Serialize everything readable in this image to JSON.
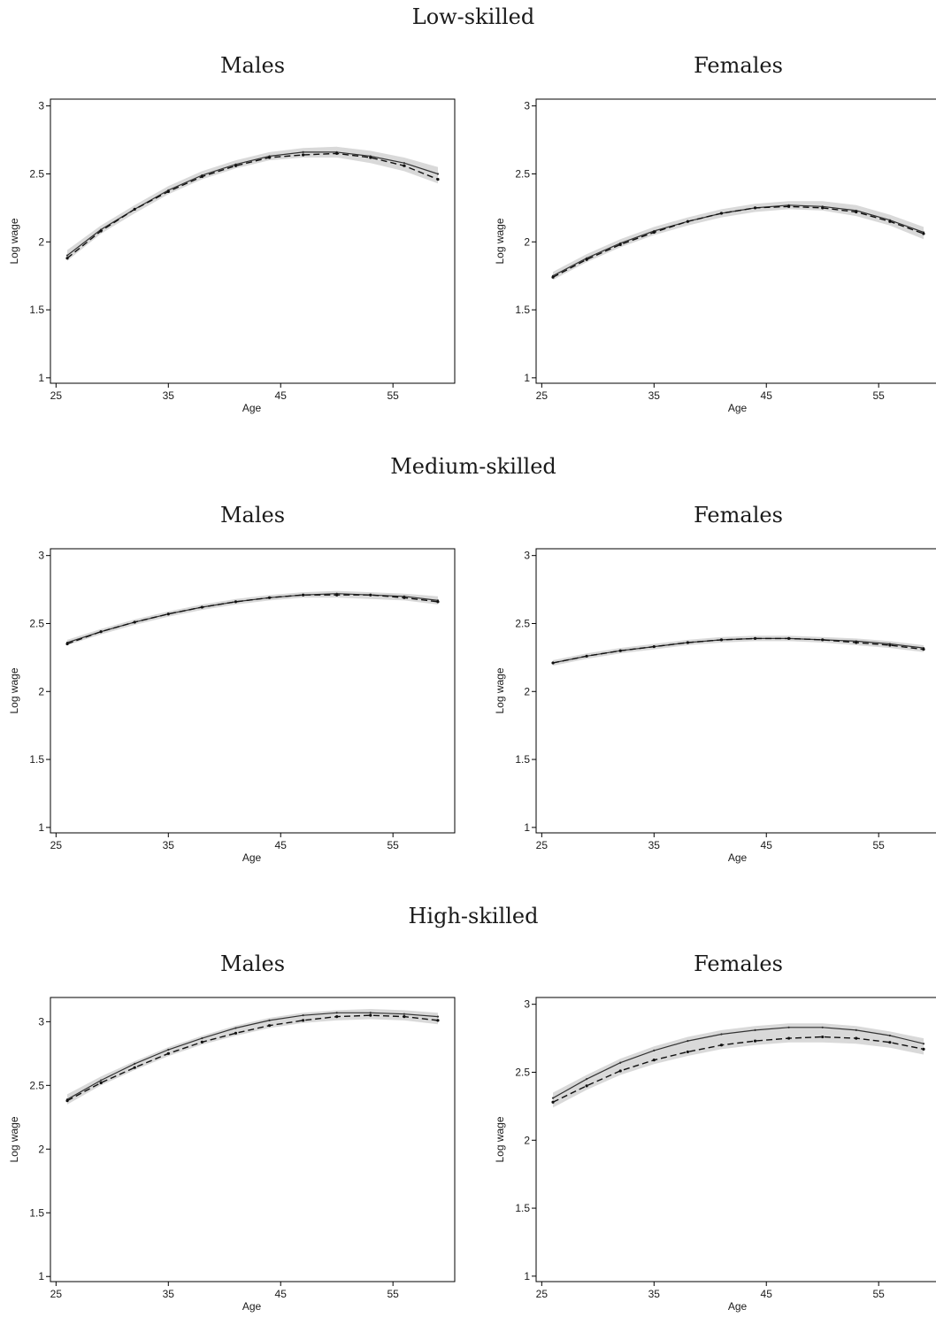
{
  "chart_data": [
    {
      "type": "line",
      "group": "Low-skilled",
      "title": "Males",
      "xlabel": "Age",
      "ylabel": "Log wage",
      "xticks": [
        "25",
        "35",
        "45",
        "55"
      ],
      "yticks": [
        "1",
        "1.5",
        "2",
        "2.5",
        "3"
      ],
      "xlim": [
        24.5,
        60.5
      ],
      "ylim": [
        0.96,
        3.05
      ],
      "series": [
        {
          "style": "solid",
          "x": [
            26,
            29,
            32,
            35,
            38,
            41,
            44,
            47,
            50,
            53,
            56,
            59
          ],
          "y": [
            1.9,
            2.09,
            2.24,
            2.38,
            2.49,
            2.57,
            2.63,
            2.66,
            2.66,
            2.63,
            2.58,
            2.5
          ]
        },
        {
          "style": "dashed",
          "x": [
            26,
            29,
            32,
            35,
            38,
            41,
            44,
            47,
            50,
            53,
            56,
            59
          ],
          "y": [
            1.88,
            2.08,
            2.24,
            2.37,
            2.48,
            2.56,
            2.62,
            2.64,
            2.65,
            2.62,
            2.56,
            2.46
          ]
        }
      ],
      "band": {
        "x": [
          26,
          29,
          32,
          35,
          38,
          41,
          44,
          47,
          50,
          53,
          56,
          59
        ],
        "lo": [
          1.86,
          2.06,
          2.21,
          2.35,
          2.46,
          2.54,
          2.6,
          2.62,
          2.62,
          2.58,
          2.52,
          2.43
        ],
        "hi": [
          1.94,
          2.12,
          2.27,
          2.41,
          2.52,
          2.6,
          2.66,
          2.69,
          2.7,
          2.67,
          2.62,
          2.55
        ]
      }
    },
    {
      "type": "line",
      "group": "Low-skilled",
      "title": "Females",
      "xlabel": "Age",
      "ylabel": "Log wage",
      "xticks": [
        "25",
        "35",
        "45",
        "55"
      ],
      "yticks": [
        "1",
        "1.5",
        "2",
        "2.5",
        "3"
      ],
      "xlim": [
        24.5,
        60.5
      ],
      "ylim": [
        0.96,
        3.05
      ],
      "series": [
        {
          "style": "solid",
          "x": [
            26,
            29,
            32,
            35,
            38,
            41,
            44,
            47,
            50,
            53,
            56,
            59
          ],
          "y": [
            1.75,
            1.88,
            1.99,
            2.08,
            2.15,
            2.21,
            2.25,
            2.27,
            2.26,
            2.23,
            2.16,
            2.07
          ]
        },
        {
          "style": "dashed",
          "x": [
            26,
            29,
            32,
            35,
            38,
            41,
            44,
            47,
            50,
            53,
            56,
            59
          ],
          "y": [
            1.74,
            1.87,
            1.98,
            2.07,
            2.15,
            2.21,
            2.25,
            2.26,
            2.25,
            2.22,
            2.15,
            2.06
          ]
        }
      ],
      "band": {
        "x": [
          26,
          29,
          32,
          35,
          38,
          41,
          44,
          47,
          50,
          53,
          56,
          59
        ],
        "lo": [
          1.72,
          1.85,
          1.96,
          2.05,
          2.12,
          2.18,
          2.22,
          2.24,
          2.23,
          2.19,
          2.12,
          2.02
        ],
        "hi": [
          1.78,
          1.91,
          2.02,
          2.11,
          2.18,
          2.24,
          2.28,
          2.3,
          2.3,
          2.27,
          2.2,
          2.11
        ]
      }
    },
    {
      "type": "line",
      "group": "Medium-skilled",
      "title": "Males",
      "xlabel": "Age",
      "ylabel": "Log wage",
      "xticks": [
        "25",
        "35",
        "45",
        "55"
      ],
      "yticks": [
        "1",
        "1.5",
        "2",
        "2.5",
        "3"
      ],
      "xlim": [
        24.5,
        60.5
      ],
      "ylim": [
        0.96,
        3.05
      ],
      "series": [
        {
          "style": "solid",
          "x": [
            26,
            29,
            32,
            35,
            38,
            41,
            44,
            47,
            50,
            53,
            56,
            59
          ],
          "y": [
            2.36,
            2.44,
            2.51,
            2.57,
            2.62,
            2.66,
            2.69,
            2.71,
            2.72,
            2.71,
            2.7,
            2.67
          ]
        },
        {
          "style": "dashed",
          "x": [
            26,
            29,
            32,
            35,
            38,
            41,
            44,
            47,
            50,
            53,
            56,
            59
          ],
          "y": [
            2.35,
            2.44,
            2.51,
            2.57,
            2.62,
            2.66,
            2.69,
            2.71,
            2.71,
            2.71,
            2.69,
            2.66
          ]
        }
      ],
      "band": {
        "x": [
          26,
          29,
          32,
          35,
          38,
          41,
          44,
          47,
          50,
          53,
          56,
          59
        ],
        "lo": [
          2.34,
          2.42,
          2.49,
          2.55,
          2.6,
          2.64,
          2.67,
          2.69,
          2.69,
          2.68,
          2.67,
          2.64
        ],
        "hi": [
          2.38,
          2.46,
          2.53,
          2.59,
          2.64,
          2.68,
          2.71,
          2.73,
          2.74,
          2.73,
          2.72,
          2.7
        ]
      }
    },
    {
      "type": "line",
      "group": "Medium-skilled",
      "title": "Females",
      "xlabel": "Age",
      "ylabel": "Log wage",
      "xticks": [
        "25",
        "35",
        "45",
        "55"
      ],
      "yticks": [
        "1",
        "1.5",
        "2",
        "2.5",
        "3"
      ],
      "xlim": [
        24.5,
        60.5
      ],
      "ylim": [
        0.96,
        3.05
      ],
      "series": [
        {
          "style": "solid",
          "x": [
            26,
            29,
            32,
            35,
            38,
            41,
            44,
            47,
            50,
            53,
            56,
            59
          ],
          "y": [
            2.21,
            2.26,
            2.3,
            2.33,
            2.36,
            2.38,
            2.39,
            2.39,
            2.38,
            2.37,
            2.35,
            2.32
          ]
        },
        {
          "style": "dashed",
          "x": [
            26,
            29,
            32,
            35,
            38,
            41,
            44,
            47,
            50,
            53,
            56,
            59
          ],
          "y": [
            2.21,
            2.26,
            2.3,
            2.33,
            2.36,
            2.38,
            2.39,
            2.39,
            2.38,
            2.36,
            2.34,
            2.31
          ]
        }
      ],
      "band": {
        "x": [
          26,
          29,
          32,
          35,
          38,
          41,
          44,
          47,
          50,
          53,
          56,
          59
        ],
        "lo": [
          2.19,
          2.24,
          2.28,
          2.31,
          2.34,
          2.36,
          2.37,
          2.37,
          2.36,
          2.34,
          2.32,
          2.29
        ],
        "hi": [
          2.23,
          2.28,
          2.32,
          2.35,
          2.38,
          2.4,
          2.41,
          2.41,
          2.4,
          2.39,
          2.37,
          2.34
        ]
      }
    },
    {
      "type": "line",
      "group": "High-skilled",
      "title": "Males",
      "xlabel": "Age",
      "ylabel": "Log wage",
      "xticks": [
        "25",
        "35",
        "45",
        "55"
      ],
      "yticks": [
        "1",
        "1.5",
        "2",
        "2.5",
        "3"
      ],
      "xlim": [
        24.5,
        60.5
      ],
      "ylim": [
        0.96,
        3.19
      ],
      "series": [
        {
          "style": "solid",
          "x": [
            26,
            29,
            32,
            35,
            38,
            41,
            44,
            47,
            50,
            53,
            56,
            59
          ],
          "y": [
            2.39,
            2.54,
            2.67,
            2.78,
            2.87,
            2.95,
            3.01,
            3.05,
            3.07,
            3.07,
            3.06,
            3.04
          ]
        },
        {
          "style": "dashed",
          "x": [
            26,
            29,
            32,
            35,
            38,
            41,
            44,
            47,
            50,
            53,
            56,
            59
          ],
          "y": [
            2.38,
            2.52,
            2.64,
            2.75,
            2.84,
            2.91,
            2.97,
            3.01,
            3.04,
            3.05,
            3.04,
            3.01
          ]
        }
      ],
      "band": {
        "x": [
          26,
          29,
          32,
          35,
          38,
          41,
          44,
          47,
          50,
          53,
          56,
          59
        ],
        "lo": [
          2.35,
          2.5,
          2.62,
          2.73,
          2.82,
          2.89,
          2.95,
          2.99,
          3.01,
          3.02,
          3.01,
          2.98
        ],
        "hi": [
          2.43,
          2.57,
          2.69,
          2.8,
          2.89,
          2.97,
          3.03,
          3.07,
          3.09,
          3.1,
          3.09,
          3.07
        ]
      }
    },
    {
      "type": "line",
      "group": "High-skilled",
      "title": "Females",
      "xlabel": "Age",
      "ylabel": "Log wage",
      "xticks": [
        "25",
        "35",
        "45",
        "55"
      ],
      "yticks": [
        "1",
        "1.5",
        "2",
        "2.5",
        "3"
      ],
      "xlim": [
        24.5,
        60.5
      ],
      "ylim": [
        0.96,
        3.05
      ],
      "series": [
        {
          "style": "solid",
          "x": [
            26,
            29,
            32,
            35,
            38,
            41,
            44,
            47,
            50,
            53,
            56,
            59
          ],
          "y": [
            2.31,
            2.45,
            2.57,
            2.66,
            2.73,
            2.78,
            2.81,
            2.83,
            2.83,
            2.81,
            2.77,
            2.71
          ]
        },
        {
          "style": "dashed",
          "x": [
            26,
            29,
            32,
            35,
            38,
            41,
            44,
            47,
            50,
            53,
            56,
            59
          ],
          "y": [
            2.28,
            2.4,
            2.51,
            2.59,
            2.65,
            2.7,
            2.73,
            2.75,
            2.76,
            2.75,
            2.72,
            2.67
          ]
        }
      ],
      "band": {
        "x": [
          26,
          29,
          32,
          35,
          38,
          41,
          44,
          47,
          50,
          53,
          56,
          59
        ],
        "lo": [
          2.24,
          2.37,
          2.48,
          2.56,
          2.62,
          2.67,
          2.7,
          2.72,
          2.72,
          2.71,
          2.68,
          2.63
        ],
        "hi": [
          2.35,
          2.48,
          2.6,
          2.69,
          2.76,
          2.81,
          2.84,
          2.86,
          2.86,
          2.84,
          2.8,
          2.75
        ]
      }
    }
  ],
  "groups": [
    "Low-skilled",
    "Medium-skilled",
    "High-skilled"
  ],
  "colors": {
    "band": "#d9d9d9",
    "line": "#333333",
    "dashed": "#111111",
    "frame": "#000000"
  }
}
